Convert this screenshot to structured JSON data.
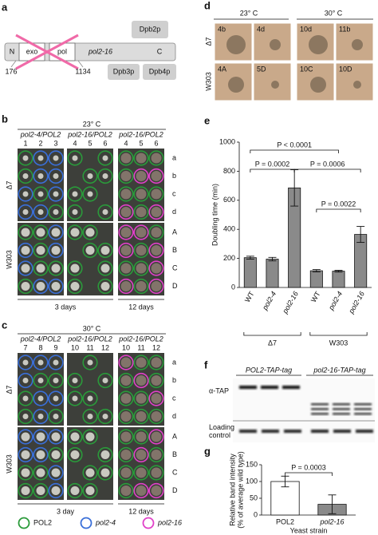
{
  "panel_labels": [
    "a",
    "b",
    "c",
    "d",
    "e",
    "f",
    "g"
  ],
  "diagram": {
    "domains": [
      "N",
      "exo",
      "pol",
      "pol2-16",
      "C"
    ],
    "positions": [
      "176",
      "1134"
    ],
    "subunits": [
      "Dpb2p",
      "Dpb3p",
      "Dpb4p"
    ]
  },
  "plates": {
    "legend": [
      {
        "name": "POL2",
        "color": "#2a9a3a"
      },
      {
        "name": "pol2-4",
        "color": "#3a6fd8"
      },
      {
        "name": "pol2-16",
        "color": "#e040c8"
      }
    ],
    "panels": [
      {
        "temperature": "23° C",
        "strains": [
          "Δ7",
          "W303"
        ],
        "row_labels_top": [
          "a",
          "b",
          "c",
          "d"
        ],
        "row_labels_bottom": [
          "A",
          "B",
          "C",
          "D"
        ],
        "durations": [
          "3 days",
          "12 days"
        ],
        "blocks": [
          {
            "genotype": "pol2-4/POL2",
            "columns": [
              "1",
              "2",
              "3"
            ],
            "rings": [
              [
                0,
                1,
                1
              ],
              [
                0,
                1,
                1
              ],
              [
                1,
                0,
                1
              ],
              [
                1,
                1,
                0
              ],
              [
                0,
                0,
                1
              ],
              [
                1,
                0,
                1
              ],
              [
                1,
                0,
                0
              ],
              [
                0,
                1,
                1
              ]
            ]
          },
          {
            "genotype": "pol2-16/POL2",
            "columns": [
              "4",
              "5",
              "6"
            ],
            "rings": [
              [
                0,
                null,
                0
              ],
              [
                null,
                0,
                0
              ],
              [
                0,
                0,
                null
              ],
              [
                0,
                null,
                0
              ],
              [
                0,
                0,
                null
              ],
              [
                null,
                0,
                0
              ],
              [
                0,
                null,
                0
              ],
              [
                0,
                null,
                0
              ]
            ]
          },
          {
            "genotype": "pol2-16/POL2",
            "columns": [
              "4",
              "5",
              "6"
            ],
            "rings": [
              [
                0,
                0,
                0
              ],
              [
                0,
                2,
                2
              ],
              [
                0,
                0,
                0
              ],
              [
                2,
                0,
                2
              ],
              [
                2,
                2,
                0
              ],
              [
                2,
                0,
                2
              ],
              [
                0,
                0,
                2
              ],
              [
                2,
                0,
                2
              ]
            ]
          }
        ]
      },
      {
        "temperature": "30° C",
        "strains": [
          "Δ7",
          "W303"
        ],
        "row_labels_top": [
          "a",
          "b",
          "c",
          "d"
        ],
        "row_labels_bottom": [
          "A",
          "B",
          "C",
          "D"
        ],
        "durations": [
          "3 day",
          "12 days"
        ],
        "blocks": [
          {
            "genotype": "pol2-4/POL2",
            "columns": [
              "7",
              "8",
              "9"
            ],
            "rings": [
              [
                1,
                1,
                1
              ],
              [
                1,
                0,
                0
              ],
              [
                0,
                1,
                1
              ],
              [
                0,
                1,
                0
              ],
              [
                1,
                1,
                1
              ],
              [
                1,
                1,
                0
              ],
              [
                0,
                0,
                1
              ],
              [
                0,
                0,
                1
              ]
            ]
          },
          {
            "genotype": "pol2-16/POL2",
            "columns": [
              "10",
              "11",
              "12"
            ],
            "rings": [
              [
                null,
                0,
                null
              ],
              [
                0,
                null,
                0
              ],
              [
                0,
                0,
                null
              ],
              [
                null,
                0,
                0
              ],
              [
                0,
                0,
                null
              ],
              [
                0,
                null,
                0
              ],
              [
                null,
                0,
                0
              ],
              [
                0,
                0,
                null
              ]
            ]
          },
          {
            "genotype": "pol2-16/POL2",
            "columns": [
              "10",
              "11",
              "12"
            ],
            "rings": [
              [
                2,
                0,
                0
              ],
              [
                0,
                2,
                0
              ],
              [
                0,
                0,
                2
              ],
              [
                0,
                0,
                0
              ],
              [
                0,
                0,
                2
              ],
              [
                0,
                2,
                0
              ],
              [
                0,
                0,
                0
              ],
              [
                0,
                2,
                2
              ]
            ]
          }
        ]
      }
    ]
  },
  "micrographs": {
    "temperatures": [
      "23° C",
      "30° C"
    ],
    "strains": [
      "Δ7",
      "W303"
    ],
    "labels": [
      [
        "4b",
        "4d",
        "10d",
        "11b"
      ],
      [
        "4A",
        "5D",
        "10C",
        "10D"
      ]
    ]
  },
  "blot": {
    "groups": [
      "POL2-TAP-tag",
      "pol2-16-TAP-tag"
    ],
    "rows": [
      "α-TAP",
      "Loading control"
    ]
  },
  "chart_data": [
    {
      "type": "bar",
      "y_label": "Doubling time (min)",
      "categories": [
        "WT",
        "pol2-4",
        "pol2-16",
        "WT",
        "pol2-4",
        "pol2-16"
      ],
      "values": [
        205,
        195,
        685,
        115,
        112,
        365
      ],
      "errors": [
        10,
        12,
        125,
        8,
        6,
        55
      ],
      "colors": [
        "#8a8a8a",
        "#8a8a8a",
        "#8a8a8a",
        "#8a8a8a",
        "#8a8a8a",
        "#8a8a8a"
      ],
      "ylim": [
        0,
        1000
      ],
      "yticks": [
        0,
        200,
        400,
        600,
        800,
        1000
      ],
      "groups": [
        "Δ7",
        "W303"
      ],
      "annotations": [
        "P < 0.0001",
        "P = 0.0002",
        "P = 0.0006",
        "P = 0.0022"
      ]
    },
    {
      "type": "bar",
      "y_label": [
        "Relative band intensity",
        "(% of average wild type)"
      ],
      "x_label": "Yeast strain",
      "categories": [
        "POL2",
        "pol2-16"
      ],
      "values": [
        100,
        32
      ],
      "errors": [
        16,
        28
      ],
      "colors": [
        "#ffffff",
        "#8a8a8a"
      ],
      "ylim": [
        0,
        150
      ],
      "yticks": [
        0,
        50,
        100,
        150
      ],
      "annotations": [
        "P = 0.0003"
      ]
    }
  ]
}
